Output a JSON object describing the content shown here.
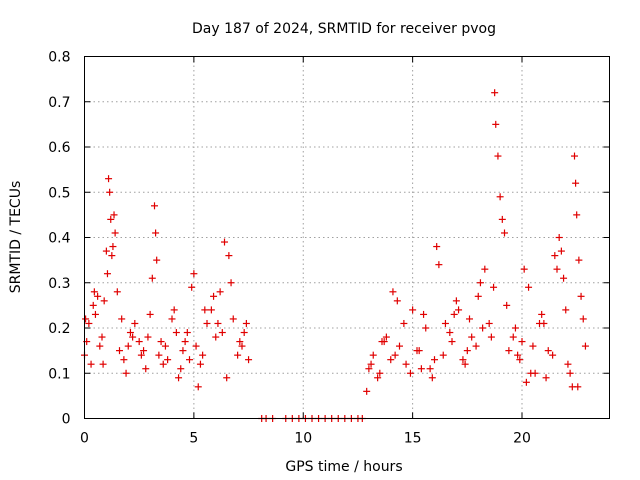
{
  "chart_data": {
    "type": "scatter",
    "title": "Day 187 of 2024, SRMTID for receiver pvog",
    "xlabel": "GPS time / hours",
    "ylabel": "SRMTID / TECUs",
    "xlim": [
      0,
      24
    ],
    "ylim": [
      0,
      0.8
    ],
    "xticks": [
      0,
      5,
      10,
      15,
      20
    ],
    "yticks": [
      0,
      0.1,
      0.2,
      0.3,
      0.4,
      0.5,
      0.6,
      0.7,
      0.8
    ],
    "xtick_labels": [
      "0",
      "5",
      "10",
      "15",
      "20"
    ],
    "ytick_labels": [
      "0",
      "0.1",
      "0.2",
      "0.3",
      "0.4",
      "0.5",
      "0.6",
      "0.7",
      "0.8"
    ],
    "grid": true,
    "marker": "+",
    "color": "#e00000",
    "series": [
      {
        "name": "pvog",
        "x": [
          0.0,
          0.2,
          0.4,
          0.6,
          0.8,
          1.0,
          1.1,
          1.15,
          1.2,
          1.3,
          1.5,
          1.7,
          2.0,
          2.3,
          2.6,
          2.9,
          3.1,
          3.2,
          3.25,
          3.3,
          3.5,
          3.8,
          4.1,
          4.4,
          4.7,
          4.9,
          5.0,
          5.1,
          5.3,
          5.6,
          5.8,
          6.0,
          6.2,
          6.4,
          6.6,
          6.8,
          7.0,
          7.3,
          7.5,
          0.1,
          0.3,
          0.5,
          0.7,
          0.9,
          1.05,
          1.25,
          1.4,
          1.6,
          1.9,
          2.1,
          2.5,
          2.8,
          3.0,
          3.4,
          3.7,
          4.0,
          4.3,
          4.6,
          4.8,
          5.2,
          5.5,
          5.9,
          6.3,
          6.7,
          7.1,
          7.4,
          8.1,
          8.3,
          8.6,
          9.2,
          9.5,
          9.8,
          10.1,
          10.4,
          10.7,
          11.0,
          11.3,
          11.6,
          11.9,
          12.2,
          12.5,
          12.7,
          12.9,
          13.2,
          13.5,
          13.8,
          14.1,
          14.4,
          14.7,
          15.0,
          15.3,
          15.6,
          15.9,
          16.1,
          16.2,
          16.5,
          16.8,
          17.1,
          17.4,
          17.7,
          18.0,
          18.3,
          18.5,
          18.7,
          18.75,
          18.8,
          18.9,
          19.1,
          19.4,
          19.7,
          20.0,
          20.1,
          20.3,
          20.6,
          20.9,
          21.2,
          21.5,
          21.7,
          21.8,
          21.9,
          22.1,
          22.4,
          22.45,
          22.5,
          22.6,
          22.7,
          22.9,
          13.0,
          13.4,
          13.7,
          14.0,
          14.3,
          14.6,
          14.9,
          15.2,
          15.5,
          15.8,
          16.4,
          16.7,
          17.0,
          17.3,
          17.6,
          17.9,
          18.2,
          19.0,
          19.3,
          19.6,
          19.9,
          20.2,
          20.5,
          20.8,
          21.1,
          21.4,
          22.0,
          22.3,
          22.8,
          0.05,
          0.45,
          0.85,
          1.35,
          1.8,
          2.2,
          2.7,
          3.6,
          4.2,
          4.5,
          5.4,
          6.1,
          6.5,
          7.2,
          13.1,
          13.6,
          14.2,
          15.4,
          16.0,
          16.9,
          17.5,
          18.1,
          18.6,
          19.2,
          19.8,
          20.4,
          21.0,
          21.6,
          22.2,
          22.55
        ],
        "y": [
          0.14,
          0.21,
          0.25,
          0.27,
          0.18,
          0.37,
          0.53,
          0.5,
          0.44,
          0.38,
          0.28,
          0.22,
          0.16,
          0.21,
          0.14,
          0.18,
          0.31,
          0.47,
          0.41,
          0.35,
          0.17,
          0.13,
          0.24,
          0.11,
          0.19,
          0.29,
          0.32,
          0.16,
          0.12,
          0.21,
          0.24,
          0.18,
          0.28,
          0.39,
          0.36,
          0.22,
          0.14,
          0.19,
          0.13,
          0.17,
          0.12,
          0.23,
          0.16,
          0.26,
          0.32,
          0.36,
          0.41,
          0.15,
          0.1,
          0.19,
          0.17,
          0.11,
          0.23,
          0.14,
          0.16,
          0.22,
          0.09,
          0.17,
          0.13,
          0.07,
          0.24,
          0.27,
          0.19,
          0.3,
          0.17,
          0.21,
          0,
          0,
          0,
          0,
          0,
          0,
          0,
          0,
          0,
          0,
          0,
          0,
          0,
          0,
          0,
          0,
          0.06,
          0.14,
          0.1,
          0.18,
          0.28,
          0.16,
          0.12,
          0.24,
          0.15,
          0.2,
          0.09,
          0.38,
          0.34,
          0.21,
          0.17,
          0.24,
          0.12,
          0.18,
          0.27,
          0.33,
          0.21,
          0.29,
          0.72,
          0.65,
          0.58,
          0.44,
          0.15,
          0.2,
          0.17,
          0.33,
          0.29,
          0.1,
          0.23,
          0.15,
          0.36,
          0.4,
          0.37,
          0.31,
          0.12,
          0.58,
          0.52,
          0.45,
          0.35,
          0.27,
          0.16,
          0.11,
          0.09,
          0.17,
          0.13,
          0.26,
          0.21,
          0.1,
          0.15,
          0.23,
          0.11,
          0.14,
          0.19,
          0.26,
          0.13,
          0.22,
          0.16,
          0.2,
          0.49,
          0.25,
          0.18,
          0.13,
          0.08,
          0.16,
          0.21,
          0.09,
          0.14,
          0.24,
          0.07,
          0.22,
          0.22,
          0.28,
          0.12,
          0.45,
          0.13,
          0.18,
          0.15,
          0.12,
          0.19,
          0.15,
          0.14,
          0.21,
          0.09,
          0.16,
          0.12,
          0.17,
          0.14,
          0.11,
          0.13,
          0.23,
          0.15,
          0.3,
          0.18,
          0.41,
          0.14,
          0.1,
          0.21,
          0.33,
          0.1,
          0.07
        ]
      }
    ]
  }
}
